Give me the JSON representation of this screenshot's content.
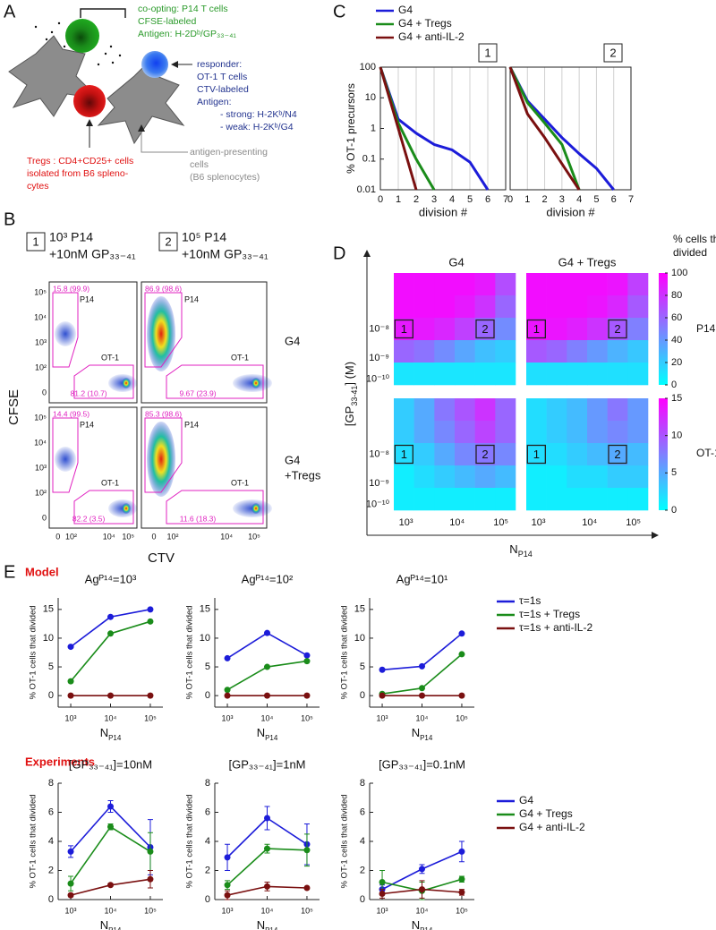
{
  "panel_labels": [
    "A",
    "B",
    "C",
    "D",
    "E"
  ],
  "panel_a": {
    "p14": [
      "co-opting: P14 T cells",
      "CFSE-labeled",
      "Antigen: H-2Dᵇ/GP₃₃₋₄₁"
    ],
    "responder": [
      "responder:",
      "OT-1 T cells",
      "CTV-labeled",
      "Antigen:",
      "- strong: H-2Kᵇ/N4",
      "- weak: H-2Kᵇ/G4"
    ],
    "tregs": [
      "Tregs : CD4+CD25+ cells",
      "isolated from B6 spleno-",
      "cytes"
    ],
    "apc": [
      "antigen-presenting",
      "cells",
      "(B6 splenocytes)"
    ]
  },
  "panel_b": {
    "conditions": [
      {
        "box": "1",
        "lines": [
          "10³ P14",
          "+10nM GP₃₃₋₄₁"
        ]
      },
      {
        "box": "2",
        "lines": [
          "10⁵ P14",
          "+10nM GP₃₃₋₄₁"
        ]
      }
    ],
    "rows": [
      [
        "G4"
      ],
      [
        "G4",
        "+Tregs"
      ]
    ],
    "plots": [
      {
        "p14_gate": "15.8 (99.9)",
        "ot1_gate": "81.2 (10.7)"
      },
      {
        "p14_gate": "86.9 (98.6)",
        "ot1_gate": "9.67 (23.9)"
      },
      {
        "p14_gate": "14.4 (99.5)",
        "ot1_gate": "82.2 (3.5)"
      },
      {
        "p14_gate": "85.3 (98.6)",
        "ot1_gate": "11.6 (18.3)"
      }
    ],
    "gate_names": [
      "P14",
      "OT-1"
    ],
    "y_ticks": [
      "10⁵",
      "10⁴",
      "10³",
      "10²",
      "0"
    ],
    "x_ticks": [
      "0",
      "10²",
      "10⁴",
      "10⁵"
    ],
    "x_label": "CTV",
    "y_label": "CFSE"
  },
  "panel_d": {
    "columns": [
      "G4",
      "G4 + Tregs"
    ],
    "rows": [
      "P14",
      "OT-1"
    ],
    "colorbar_label": [
      "% cells that",
      "divided"
    ],
    "y_label": {
      "main": "[GP",
      "sub": "33-41",
      "rest": "] (M)"
    },
    "x_label": {
      "main": "N",
      "sub": "P14"
    },
    "y_ticks": [
      "10⁻⁸",
      "10⁻⁹",
      "10⁻¹⁰"
    ],
    "x_ticks": [
      "10³",
      "10⁴",
      "10⁵"
    ],
    "markers": [
      "1",
      "2"
    ]
  },
  "panel_e": {
    "sections": [
      "Model",
      "Experiments"
    ]
  },
  "chart_data": [
    {
      "type": "line",
      "log_y": true,
      "title": "1",
      "title_box": true,
      "x": [
        0,
        1,
        2,
        3,
        4,
        5,
        6,
        7
      ],
      "xlim": [
        0,
        7
      ],
      "xticks": [
        0,
        1,
        2,
        3,
        4,
        5,
        6,
        7
      ],
      "ylim": [
        0.01,
        100
      ],
      "yticks": [
        100,
        10,
        1,
        0.1,
        0.01
      ],
      "grid": "x",
      "xlabel": "division #",
      "ylabel": "% OT-1 precursors",
      "series": [
        {
          "name": "G4",
          "color": "#1c1cd9",
          "values": [
            100,
            2,
            0.7,
            0.3,
            0.2,
            0.08,
            0.01,
            null
          ]
        },
        {
          "name": "G4 + Tregs",
          "color": "#1a8c1a",
          "values": [
            100,
            1.5,
            0.1,
            0.01,
            null,
            null,
            null,
            null
          ]
        },
        {
          "name": "G4 + anti-IL-2",
          "color": "#7a1010",
          "values": [
            100,
            1,
            0.01,
            null,
            null,
            null,
            null,
            null
          ]
        }
      ]
    },
    {
      "type": "line",
      "log_y": true,
      "title": "2",
      "title_box": true,
      "x": [
        0,
        1,
        2,
        3,
        4,
        5,
        6,
        7
      ],
      "xlim": [
        0,
        7
      ],
      "xticks": [
        0,
        1,
        2,
        3,
        4,
        5,
        6,
        7
      ],
      "ylim": [
        0.01,
        100
      ],
      "grid": "x",
      "xlabel": "division #",
      "series": [
        {
          "name": "G4",
          "color": "#1c1cd9",
          "values": [
            100,
            8,
            2,
            0.5,
            0.15,
            0.05,
            0.01,
            null
          ]
        },
        {
          "name": "G4 + Tregs",
          "color": "#1a8c1a",
          "values": [
            100,
            7,
            1.5,
            0.3,
            0.01,
            null,
            null,
            null
          ]
        },
        {
          "name": "G4 + anti-IL-2",
          "color": "#7a1010",
          "values": [
            100,
            3,
            0.5,
            0.07,
            0.01,
            null,
            null,
            null
          ]
        }
      ]
    },
    {
      "type": "heatmap",
      "zlim": [
        0,
        100
      ],
      "z": [
        [
          95,
          95,
          95,
          95,
          90,
          70
        ],
        [
          95,
          95,
          95,
          90,
          80,
          60
        ],
        [
          90,
          90,
          85,
          75,
          60,
          45
        ],
        [
          60,
          55,
          45,
          35,
          25,
          20
        ],
        [
          10,
          10,
          10,
          10,
          10,
          10
        ]
      ]
    },
    {
      "type": "heatmap",
      "zlim": [
        0,
        100
      ],
      "colorbar_ticks": [
        0,
        20,
        40,
        60,
        80,
        100
      ],
      "z": [
        [
          95,
          95,
          95,
          95,
          92,
          75
        ],
        [
          95,
          95,
          95,
          92,
          85,
          65
        ],
        [
          92,
          92,
          88,
          80,
          65,
          50
        ],
        [
          65,
          60,
          50,
          40,
          30,
          22
        ],
        [
          12,
          12,
          12,
          12,
          12,
          12
        ]
      ]
    },
    {
      "type": "heatmap",
      "zlim": [
        0,
        15
      ],
      "z": [
        [
          3,
          5,
          8,
          10,
          12,
          9
        ],
        [
          3,
          5,
          7,
          9,
          11,
          9
        ],
        [
          2,
          3,
          5,
          7,
          8,
          7
        ],
        [
          1,
          2,
          3,
          4,
          5,
          4
        ],
        [
          1,
          1,
          1,
          1,
          1,
          1
        ]
      ]
    },
    {
      "type": "heatmap",
      "zlim": [
        0,
        15
      ],
      "colorbar_ticks": [
        0,
        5,
        10,
        15
      ],
      "z": [
        [
          2,
          3,
          4,
          6,
          8,
          6
        ],
        [
          2,
          3,
          4,
          6,
          7,
          6
        ],
        [
          2,
          2,
          3,
          4,
          5,
          4
        ],
        [
          1,
          1,
          2,
          2,
          3,
          3
        ],
        [
          1,
          1,
          1,
          1,
          1,
          1
        ]
      ]
    },
    {
      "type": "line",
      "markers": true,
      "title": "Agᴾ¹⁴=10³",
      "categories": [
        "10³",
        "10⁴",
        "10⁵"
      ],
      "ylim": [
        -2,
        17
      ],
      "yticks": [
        0,
        5,
        10,
        15
      ],
      "ylabel": "% OT-1 cells that divided",
      "xlabel": {
        "main": "N",
        "sub": "P14"
      },
      "series": [
        {
          "name": "τ=1s",
          "color": "#1c1cd9",
          "values": [
            8.5,
            13.7,
            15
          ]
        },
        {
          "name": "τ=1s + Tregs",
          "color": "#1a8c1a",
          "values": [
            2.5,
            10.8,
            12.9
          ]
        },
        {
          "name": "τ=1s + anti-IL-2",
          "color": "#7a1010",
          "values": [
            0,
            0,
            0
          ]
        }
      ]
    },
    {
      "type": "line",
      "markers": true,
      "title": "Agᴾ¹⁴=10²",
      "categories": [
        "10³",
        "10⁴",
        "10⁵"
      ],
      "ylim": [
        -2,
        17
      ],
      "yticks": [
        0,
        5,
        10,
        15
      ],
      "ylabel": "% OT-1 cells that divided",
      "xlabel": {
        "main": "N",
        "sub": "P14"
      },
      "series": [
        {
          "name": "τ=1s",
          "color": "#1c1cd9",
          "values": [
            6.5,
            10.9,
            7
          ]
        },
        {
          "name": "τ=1s + Tregs",
          "color": "#1a8c1a",
          "values": [
            1,
            5,
            6
          ]
        },
        {
          "name": "τ=1s + anti-IL-2",
          "color": "#7a1010",
          "values": [
            0,
            0,
            0
          ]
        }
      ]
    },
    {
      "type": "line",
      "markers": true,
      "title": "Agᴾ¹⁴=10¹",
      "categories": [
        "10³",
        "10⁴",
        "10⁵"
      ],
      "ylim": [
        -2,
        17
      ],
      "yticks": [
        0,
        5,
        10,
        15
      ],
      "ylabel": "% OT-1 cells that divided",
      "xlabel": {
        "main": "N",
        "sub": "P14"
      },
      "series": [
        {
          "name": "τ=1s",
          "color": "#1c1cd9",
          "values": [
            4.5,
            5.1,
            10.8
          ]
        },
        {
          "name": "τ=1s + Tregs",
          "color": "#1a8c1a",
          "values": [
            0.3,
            1.3,
            7.2
          ]
        },
        {
          "name": "τ=1s + anti-IL-2",
          "color": "#7a1010",
          "values": [
            0,
            0,
            0
          ]
        }
      ]
    },
    {
      "type": "line",
      "markers": true,
      "title": "[GP₃₃₋₄₁]=10nM",
      "categories": [
        "10³",
        "10⁴",
        "10⁵"
      ],
      "ylim": [
        0,
        8
      ],
      "yticks": [
        0,
        2,
        4,
        6,
        8
      ],
      "ylabel": "% OT-1 cells that divided",
      "xlabel": {
        "main": "N",
        "sub": "P14"
      },
      "series": [
        {
          "name": "G4",
          "color": "#1c1cd9",
          "values": [
            3.3,
            6.4,
            3.6
          ],
          "errors": [
            0.4,
            0.4,
            1.9
          ]
        },
        {
          "name": "G4 + Tregs",
          "color": "#1a8c1a",
          "values": [
            1.1,
            5.0,
            3.3
          ],
          "errors": [
            0.5,
            0.2,
            1.3
          ]
        },
        {
          "name": "G4 + anti-IL-2",
          "color": "#7a1010",
          "values": [
            0.3,
            1.0,
            1.4
          ],
          "errors": [
            0.1,
            0.1,
            0.6
          ]
        }
      ]
    },
    {
      "type": "line",
      "markers": true,
      "title": "[GP₃₃₋₄₁]=1nM",
      "categories": [
        "10³",
        "10⁴",
        "10⁵"
      ],
      "ylim": [
        0,
        8
      ],
      "yticks": [
        0,
        2,
        4,
        6,
        8
      ],
      "ylabel": "% OT-1 cells that divided",
      "xlabel": {
        "main": "N",
        "sub": "P14"
      },
      "series": [
        {
          "name": "G4",
          "color": "#1c1cd9",
          "values": [
            2.9,
            5.6,
            3.8
          ],
          "errors": [
            0.9,
            0.8,
            1.4
          ]
        },
        {
          "name": "G4 + Tregs",
          "color": "#1a8c1a",
          "values": [
            1.0,
            3.5,
            3.4
          ],
          "errors": [
            0.3,
            0.3,
            1.1
          ]
        },
        {
          "name": "G4 + anti-IL-2",
          "color": "#7a1010",
          "values": [
            0.3,
            0.9,
            0.8
          ],
          "errors": [
            0.3,
            0.3,
            0.05
          ]
        }
      ]
    },
    {
      "type": "line",
      "markers": true,
      "title": "[GP₃₃₋₄₁]=0.1nM",
      "categories": [
        "10³",
        "10⁴",
        "10⁵"
      ],
      "ylim": [
        0,
        8
      ],
      "yticks": [
        0,
        2,
        4,
        6,
        8
      ],
      "ylabel": "% OT-1 cells that divided",
      "xlabel": {
        "main": "N",
        "sub": "P14"
      },
      "series": [
        {
          "name": "G4",
          "color": "#1c1cd9",
          "values": [
            0.7,
            2.1,
            3.3
          ],
          "errors": [
            0.3,
            0.3,
            0.7
          ]
        },
        {
          "name": "G4 + Tregs",
          "color": "#1a8c1a",
          "values": [
            1.2,
            0.6,
            1.4
          ],
          "errors": [
            0.8,
            0.6,
            0.2
          ]
        },
        {
          "name": "G4 + anti-IL-2",
          "color": "#7a1010",
          "values": [
            0.4,
            0.7,
            0.5
          ],
          "errors": [
            0.3,
            0.6,
            0.2
          ]
        }
      ]
    }
  ]
}
